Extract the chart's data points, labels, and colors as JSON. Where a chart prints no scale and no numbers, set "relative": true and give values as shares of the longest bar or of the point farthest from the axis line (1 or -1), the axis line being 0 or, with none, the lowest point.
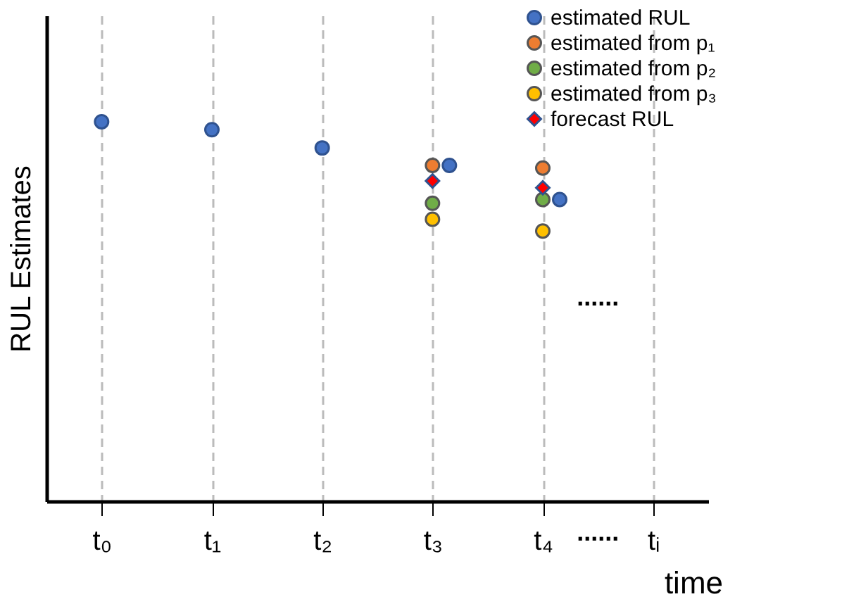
{
  "chart_data": {
    "type": "scatter",
    "relative": true,
    "xlabel": "time",
    "ylabel": "RUL Estimates",
    "categories": [
      "t₀",
      "t₁",
      "t₂",
      "t₃",
      "t₄",
      "tᵢ"
    ],
    "series": [
      {
        "name": "estimated RUL",
        "color": "#4472c4",
        "marker": "circle",
        "values": [
          1.0,
          0.979,
          0.931,
          0.885,
          0.795,
          null
        ]
      },
      {
        "name": "estimated from p₁",
        "color": "#ed7d31",
        "marker": "circle",
        "values": [
          null,
          null,
          null,
          0.885,
          0.878,
          null
        ]
      },
      {
        "name": "estimated from p₂",
        "color": "#70ad47",
        "marker": "circle",
        "values": [
          null,
          null,
          null,
          0.785,
          0.795,
          null
        ]
      },
      {
        "name": "estimated from p₃",
        "color": "#ffc000",
        "marker": "circle",
        "values": [
          null,
          null,
          null,
          0.743,
          0.712,
          null
        ]
      },
      {
        "name": "forecast RUL",
        "color": "#ff0000",
        "marker": "diamond",
        "values": [
          null,
          null,
          null,
          0.844,
          0.826,
          null
        ]
      }
    ],
    "annotations": [
      "......",
      "......"
    ],
    "grid": "x",
    "legend": "top right"
  }
}
